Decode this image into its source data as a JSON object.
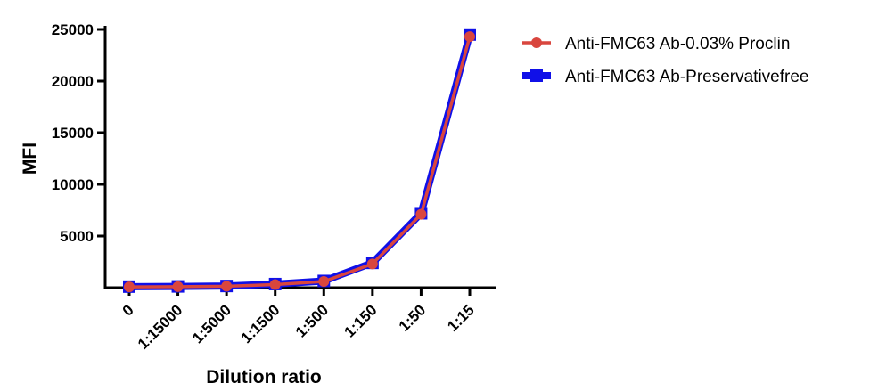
{
  "chart_data": {
    "type": "line",
    "title": "",
    "xlabel": "Dilution ratio",
    "ylabel": "MFI",
    "categories": [
      "0",
      "1:15000",
      "1:5000",
      "1:1500",
      "1:500",
      "1:150",
      "1:50",
      "1:15"
    ],
    "ylim": [
      0,
      25000
    ],
    "yticks": [
      5000,
      10000,
      15000,
      20000,
      25000
    ],
    "ytick_labels": [
      "5000",
      "10000",
      "15000",
      "20000",
      "25000"
    ],
    "grid": false,
    "legend_position": "top-right",
    "series": [
      {
        "name": "Anti-FMC63 Ab-Preservativefree",
        "values": [
          100,
          120,
          160,
          350,
          650,
          2400,
          7200,
          24500
        ],
        "color": "#1010e8",
        "marker": "square"
      },
      {
        "name": "Anti-FMC63 Ab-0.03% Proclin",
        "values": [
          80,
          100,
          140,
          300,
          600,
          2300,
          7100,
          24300
        ],
        "color": "#d9463e",
        "marker": "circle"
      }
    ],
    "legend_order": [
      1,
      0
    ]
  }
}
